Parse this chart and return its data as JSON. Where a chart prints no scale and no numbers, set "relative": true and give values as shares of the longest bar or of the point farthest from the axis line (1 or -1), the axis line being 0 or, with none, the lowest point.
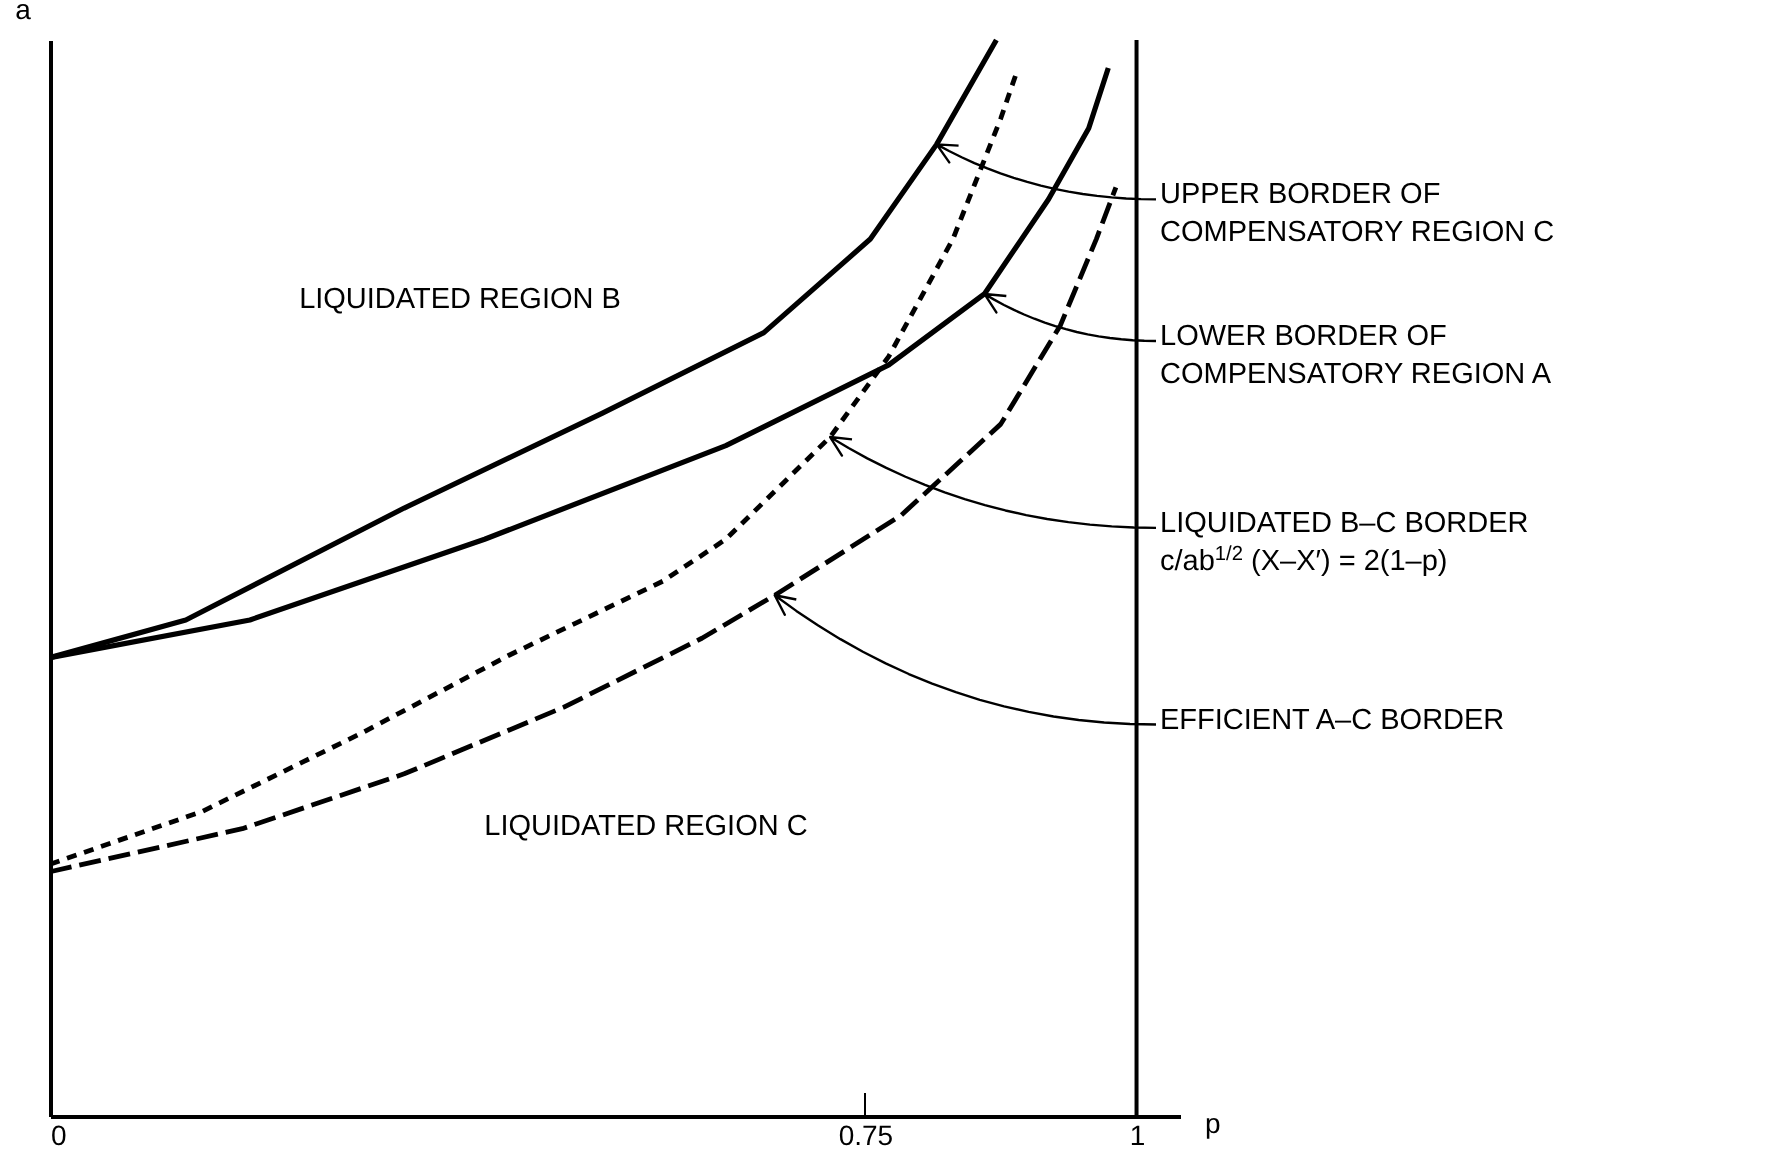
{
  "chart_data": {
    "type": "line",
    "relative": true,
    "xlabel": "p",
    "ylabel": "a",
    "xlim": [
      0,
      1.04
    ],
    "xticks": [
      0,
      0.75,
      1
    ],
    "grid": false,
    "series": [
      {
        "name": "UPPER BORDER OF\nCOMPENSATORY REGION C",
        "color": "#000000",
        "line_style": "solid",
        "x": [
          0,
          0.125,
          0.326,
          0.508,
          0.657,
          0.755,
          0.816,
          0.871
        ],
        "values": [
          0.426,
          0.461,
          0.565,
          0.653,
          0.728,
          0.815,
          0.903,
          1.0
        ]
      },
      {
        "name": "LOWER BORDER OF\nCOMPENSATORY REGION A",
        "color": "#000000",
        "line_style": "solid",
        "x": [
          0,
          0.184,
          0.4,
          0.622,
          0.772,
          0.86,
          0.919,
          0.956,
          0.974
        ],
        "values": [
          0.426,
          0.461,
          0.536,
          0.623,
          0.698,
          0.764,
          0.852,
          0.918,
          0.974
        ]
      },
      {
        "name": "LIQUIDATED B–C BORDER\nc/ab$^{1/2}$ (X–X′) = 2(1–p)",
        "color": "#000000",
        "line_style": "dotted",
        "x": [
          0,
          0.14,
          0.287,
          0.422,
          0.564,
          0.622,
          0.718,
          0.772,
          0.831,
          0.875,
          0.89
        ],
        "values": [
          0.234,
          0.283,
          0.356,
          0.428,
          0.497,
          0.536,
          0.631,
          0.706,
          0.815,
          0.927,
          0.971
        ]
      },
      {
        "name": "EFFICIENT A–C BORDER",
        "color": "#000000",
        "line_style": "dashed",
        "x": [
          0,
          0.177,
          0.326,
          0.473,
          0.6,
          0.667,
          0.783,
          0.875,
          0.93,
          0.963,
          0.981
        ],
        "values": [
          0.227,
          0.267,
          0.318,
          0.38,
          0.444,
          0.484,
          0.558,
          0.643,
          0.735,
          0.815,
          0.863
        ]
      }
    ],
    "ref_lines": [
      {
        "axis": "x",
        "value": 1,
        "color": "#000000",
        "line_style": "solid"
      }
    ],
    "annotations": [
      "LIQUIDATED REGION B",
      "LIQUIDATED REGION C"
    ]
  }
}
